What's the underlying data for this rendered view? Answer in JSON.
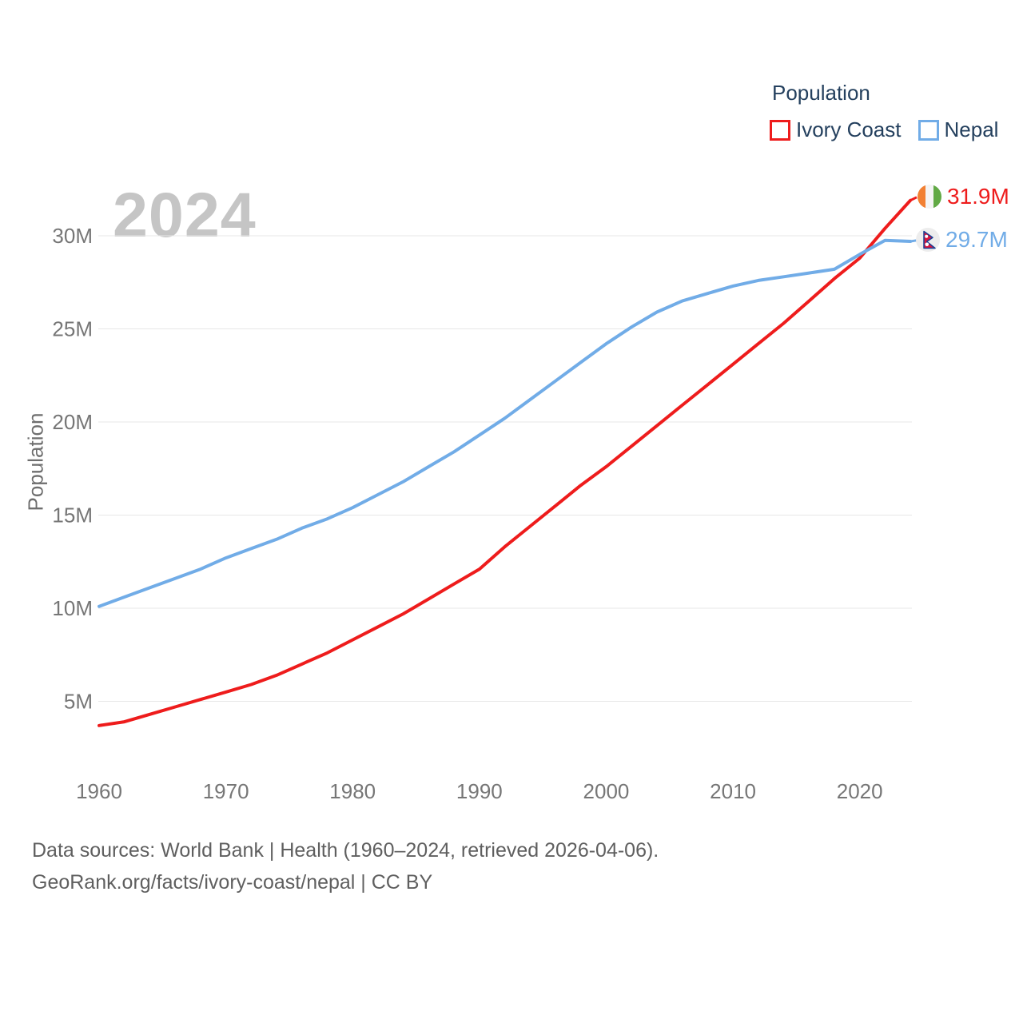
{
  "watermark": "2024",
  "legend": {
    "title": "Population",
    "items": [
      {
        "label": "Ivory Coast"
      },
      {
        "label": "Nepal"
      }
    ]
  },
  "y_axis": {
    "title": "Population"
  },
  "end_labels": [
    {
      "series": "Ivory Coast",
      "value": "31.9M"
    },
    {
      "series": "Nepal",
      "value": "29.7M"
    }
  ],
  "footer": {
    "line1": "Data sources: World Bank | Health (1960–2024, retrieved 2026-04-06).",
    "line2": "GeoRank.org/facts/ivory-coast/nepal | CC BY"
  },
  "colors": {
    "accent_red": "#ee1c1c",
    "accent_blue": "#71ace7",
    "legend_text": "#24405e",
    "tick_text": "#767676",
    "axis_title_text": "#6e6e6e",
    "watermark": "#c5c5c5",
    "footer_text": "#5f5f5f",
    "gridline": "#e7e7e7"
  },
  "chart_data": {
    "type": "line",
    "title": "Population",
    "xlabel": "",
    "ylabel": "Population",
    "units": "millions",
    "grid": "horizontal",
    "legend_position": "top-right",
    "ylim": [
      2,
      33
    ],
    "xlim": [
      1960,
      2024
    ],
    "x": [
      1960,
      1962,
      1964,
      1966,
      1968,
      1970,
      1972,
      1974,
      1976,
      1978,
      1980,
      1982,
      1984,
      1986,
      1988,
      1990,
      1992,
      1994,
      1996,
      1998,
      2000,
      2002,
      2004,
      2006,
      2008,
      2010,
      2012,
      2014,
      2016,
      2018,
      2020,
      2022,
      2024
    ],
    "series": [
      {
        "name": "Ivory Coast",
        "color": "#ee1c1c",
        "end_label": "31.9M",
        "values": [
          3.7,
          3.9,
          4.3,
          4.7,
          5.1,
          5.5,
          5.9,
          6.4,
          7.0,
          7.6,
          8.3,
          9.0,
          9.7,
          10.5,
          11.3,
          12.1,
          13.3,
          14.4,
          15.5,
          16.6,
          17.6,
          18.7,
          19.8,
          20.9,
          22.0,
          23.1,
          24.2,
          25.3,
          26.5,
          27.7,
          28.8,
          30.4,
          31.9
        ]
      },
      {
        "name": "Nepal",
        "color": "#71ace7",
        "end_label": "29.7M",
        "values": [
          10.1,
          10.6,
          11.1,
          11.6,
          12.1,
          12.7,
          13.2,
          13.7,
          14.3,
          14.8,
          15.4,
          16.1,
          16.8,
          17.6,
          18.4,
          19.3,
          20.2,
          21.2,
          22.2,
          23.2,
          24.2,
          25.1,
          25.9,
          26.5,
          26.9,
          27.3,
          27.6,
          27.8,
          28.0,
          28.2,
          29.0,
          29.75,
          29.7
        ]
      }
    ],
    "x_ticks": [
      {
        "value": 1960,
        "label": "1960"
      },
      {
        "value": 1970,
        "label": "1970"
      },
      {
        "value": 1980,
        "label": "1980"
      },
      {
        "value": 1990,
        "label": "1990"
      },
      {
        "value": 2000,
        "label": "2000"
      },
      {
        "value": 2010,
        "label": "2010"
      },
      {
        "value": 2020,
        "label": "2020"
      }
    ],
    "y_ticks": [
      {
        "value": 5,
        "label": "5M"
      },
      {
        "value": 10,
        "label": "10M"
      },
      {
        "value": 15,
        "label": "15M"
      },
      {
        "value": 20,
        "label": "20M"
      },
      {
        "value": 25,
        "label": "25M"
      },
      {
        "value": 30,
        "label": "30M"
      }
    ]
  }
}
